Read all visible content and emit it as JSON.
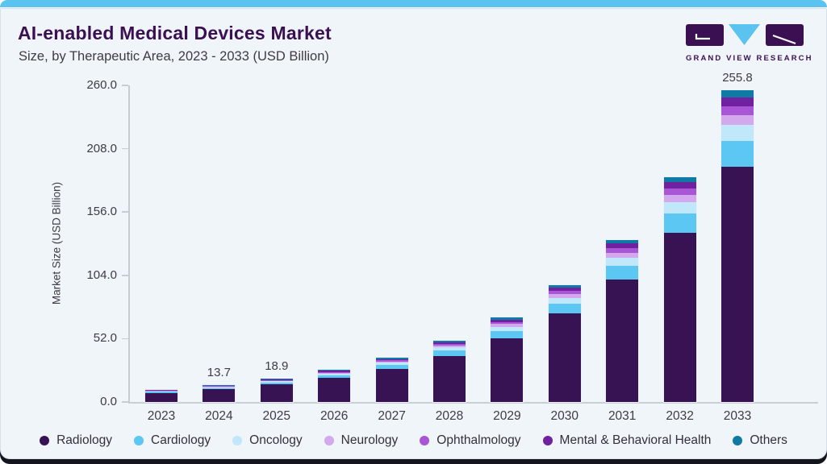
{
  "header": {
    "title": "AI-enabled Medical Devices Market",
    "subtitle": "Size, by Therapeutic Area, 2023 - 2033 (USD Billion)",
    "logo_text": "GRAND VIEW RESEARCH"
  },
  "colors": {
    "top_strip": "#5ac3ef",
    "bottom_strip": "#14141f",
    "card_background": "#eff5f9",
    "card_border": "#d7e0e8",
    "title_text": "#3b1053",
    "body_text": "#3f3b46",
    "axis_line": "#c9ced6",
    "logo_purple": "#3b1053",
    "logo_blue": "#5ac3ef"
  },
  "chart_data": {
    "type": "bar",
    "stacked": true,
    "title": "AI-enabled Medical Devices Market Size, by Therapeutic Area, 2023 - 2033 (USD Billion)",
    "xlabel": "",
    "ylabel": "Market Size (USD Billion)",
    "ylim": [
      0,
      260
    ],
    "yticks": [
      0,
      52,
      104,
      156,
      208,
      260
    ],
    "ytick_labels": [
      "0.0",
      "52.0",
      "104.0",
      "156.0",
      "208.0",
      "260.0"
    ],
    "grid": false,
    "legend_position": "bottom",
    "categories": [
      "2023",
      "2024",
      "2025",
      "2026",
      "2027",
      "2028",
      "2029",
      "2030",
      "2031",
      "2032",
      "2033"
    ],
    "totals": [
      9.9,
      13.7,
      18.9,
      26.2,
      36.2,
      50.2,
      69.5,
      96.2,
      133.3,
      184.6,
      255.8
    ],
    "total_labels": [
      "",
      "13.7",
      "18.9",
      "",
      "",
      "",
      "",
      "",
      "",
      "",
      "255.8"
    ],
    "series": [
      {
        "name": "Radiology",
        "color": "#371353",
        "values": [
          7.5,
          10.3,
          14.3,
          19.8,
          27.3,
          37.9,
          52.4,
          72.5,
          100.5,
          139.2,
          192.9
        ]
      },
      {
        "name": "Cardiology",
        "color": "#5bc7f2",
        "values": [
          0.8,
          1.2,
          1.6,
          2.2,
          3.0,
          4.2,
          5.8,
          8.1,
          11.2,
          15.5,
          21.5
        ]
      },
      {
        "name": "Oncology",
        "color": "#c0e8fa",
        "values": [
          0.5,
          0.7,
          1.0,
          1.3,
          1.8,
          2.6,
          3.5,
          4.9,
          6.8,
          9.4,
          13.0
        ]
      },
      {
        "name": "Neurology",
        "color": "#d3a8ec",
        "values": [
          0.3,
          0.4,
          0.6,
          0.8,
          1.1,
          1.6,
          2.2,
          3.0,
          4.1,
          5.7,
          7.9
        ]
      },
      {
        "name": "Ophthalmology",
        "color": "#a855d6",
        "values": [
          0.3,
          0.4,
          0.5,
          0.7,
          1.0,
          1.4,
          1.9,
          2.7,
          3.7,
          5.2,
          7.2
        ]
      },
      {
        "name": "Mental & Behavioral Health",
        "color": "#70219f",
        "values": [
          0.3,
          0.4,
          0.5,
          0.8,
          1.1,
          1.5,
          2.0,
          2.8,
          3.9,
          5.4,
          7.4
        ]
      },
      {
        "name": "Others",
        "color": "#0f7ba4",
        "values": [
          0.2,
          0.3,
          0.4,
          0.6,
          0.9,
          1.0,
          1.7,
          2.2,
          3.1,
          4.2,
          5.9
        ]
      }
    ]
  }
}
